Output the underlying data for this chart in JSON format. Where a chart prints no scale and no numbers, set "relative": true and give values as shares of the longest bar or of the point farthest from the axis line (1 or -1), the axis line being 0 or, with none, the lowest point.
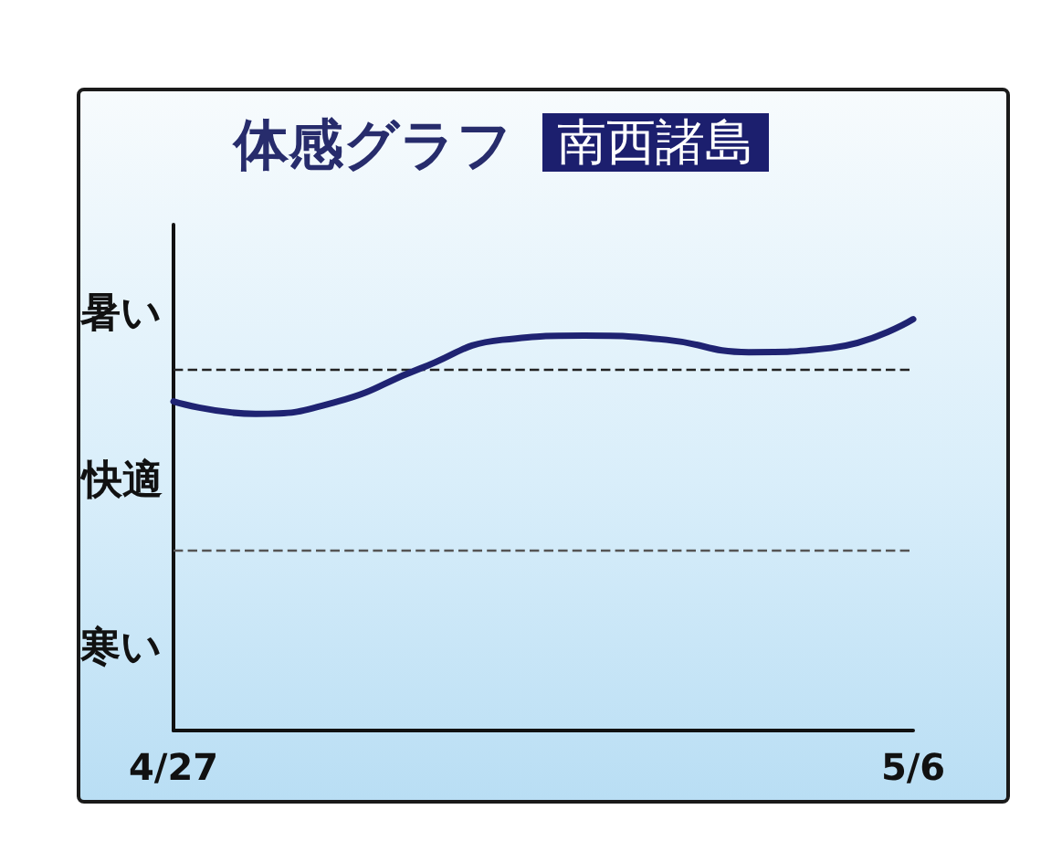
{
  "chart_data": {
    "type": "line",
    "title": "体感グラフ",
    "subtitle": "南西諸島",
    "x": [
      "--04-27",
      "--04-28",
      "--04-29",
      "--04-30",
      "--05-01",
      "--05-02",
      "--05-03",
      "--05-04",
      "--05-05",
      "--05-06"
    ],
    "series": [
      {
        "color": "#1f2372",
        "values": [
          0.8,
          0.77,
          0.8,
          0.88,
          0.95,
          0.96,
          0.95,
          0.92,
          0.93,
          1.0
        ]
      }
    ],
    "relative": true,
    "xlim": [
      "--04-27",
      "--05-06"
    ],
    "xticks": [
      {
        "value": "--04-27",
        "label": "4/27"
      },
      {
        "value": "--05-06",
        "label": "5/6"
      }
    ],
    "marker": "none",
    "line_style": "solid",
    "ref_lines": [
      {
        "axis": "y",
        "value": 0.88,
        "line_style": "dashed",
        "color": "#222222"
      },
      {
        "axis": "y",
        "value": 0.44,
        "line_style": "dashed",
        "color": "#555555"
      }
    ],
    "annotations": [
      "暑い",
      "快適",
      "寒い"
    ]
  }
}
